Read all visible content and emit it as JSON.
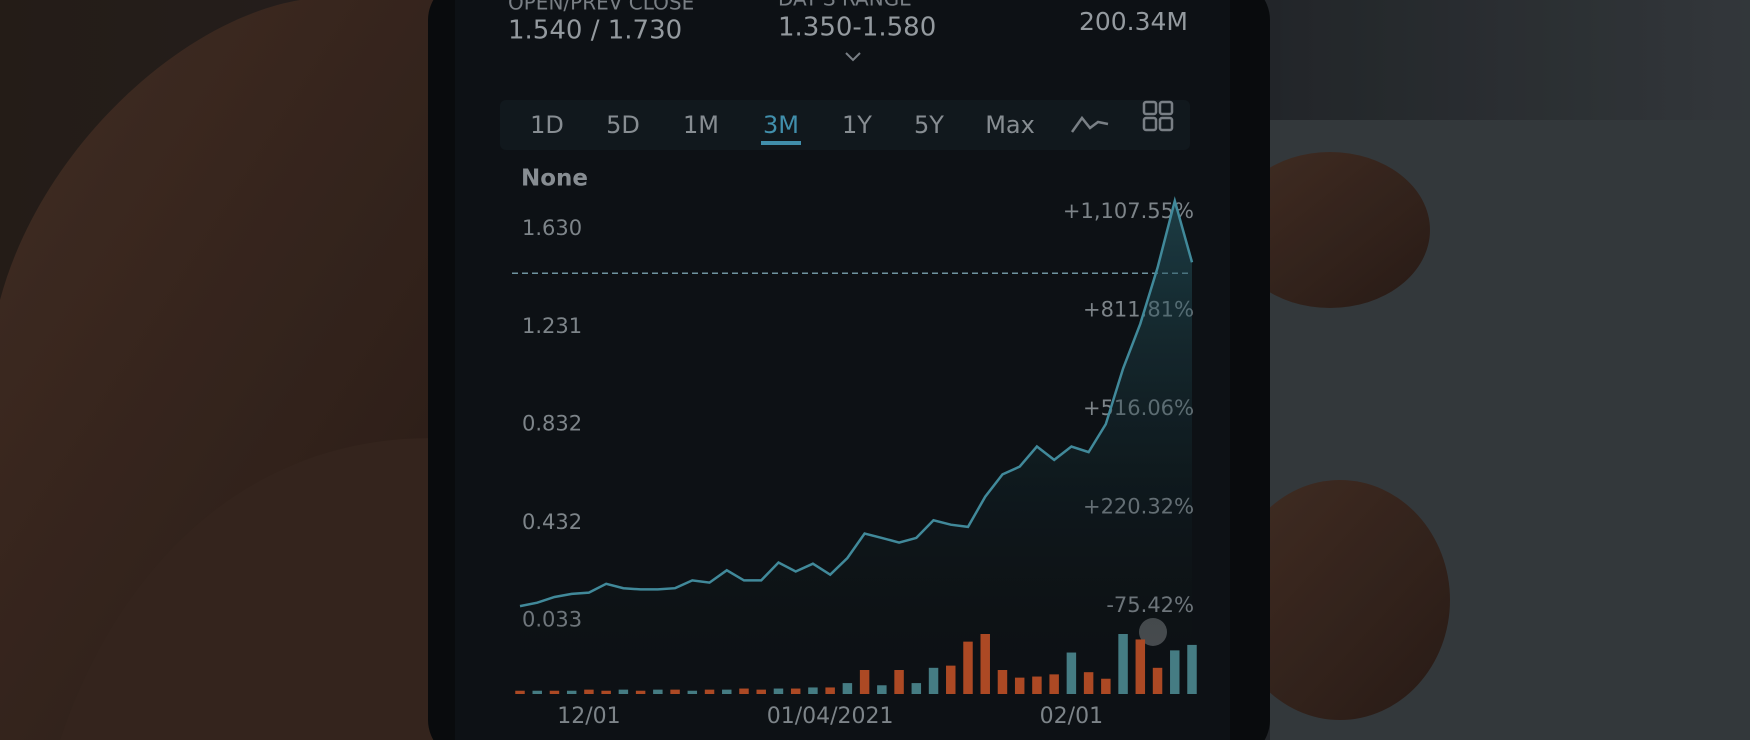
{
  "header": {
    "open_label": "OPEN/PREV CLOSE",
    "open_value": "1.540 / 1.730",
    "range_label": "DAY'S RANGE",
    "range_value": "1.350-1.580",
    "volume_value": "200.34M"
  },
  "tabs": [
    "1D",
    "5D",
    "1M",
    "3M",
    "1Y",
    "5Y",
    "Max"
  ],
  "active_tab": "3M",
  "indicator": "None",
  "chart_data": {
    "type": "line",
    "categories": [
      null,
      null,
      null,
      null,
      "12/01",
      null,
      null,
      null,
      null,
      null,
      null,
      null,
      null,
      null,
      null,
      null,
      null,
      null,
      "01/04/2021",
      null,
      null,
      null,
      null,
      null,
      null,
      null,
      null,
      null,
      null,
      null,
      null,
      null,
      "02/01",
      null,
      null,
      null,
      null,
      null,
      null,
      null
    ],
    "series": [
      {
        "color": "#4a9db0",
        "values": [
          0.133,
          0.147,
          0.17,
          0.183,
          0.188,
          0.224,
          0.206,
          0.201,
          0.201,
          0.206,
          0.238,
          0.229,
          0.279,
          0.238,
          0.238,
          0.311,
          0.274,
          0.306,
          0.261,
          0.329,
          0.429,
          0.411,
          0.392,
          0.411,
          0.483,
          0.465,
          0.456,
          0.579,
          0.67,
          0.702,
          0.784,
          0.729,
          0.784,
          0.761,
          0.875,
          1.102,
          1.284,
          1.512,
          1.785,
          1.535
        ]
      }
    ],
    "volume": [
      3,
      3,
      3,
      3,
      4,
      3,
      4,
      3,
      4,
      4,
      3,
      4,
      4,
      5,
      4,
      5,
      5,
      6,
      6,
      10,
      22,
      8,
      22,
      10,
      24,
      26,
      48,
      55,
      22,
      15,
      16,
      18,
      38,
      20,
      14,
      55,
      50,
      24,
      40,
      45
    ],
    "volume_colors": [
      "#c4542a",
      "#4f8e96",
      "#c4542a",
      "#4f8e96",
      "#c4542a",
      "#c4542a",
      "#4f8e96",
      "#c4542a",
      "#4f8e96",
      "#c4542a",
      "#4f8e96",
      "#c4542a",
      "#4f8e96",
      "#c4542a",
      "#c4542a",
      "#4f8e96",
      "#c4542a",
      "#4f8e96",
      "#c4542a",
      "#4f8e96",
      "#c4542a",
      "#4f8e96",
      "#c4542a",
      "#4f8e96",
      "#4f8e96",
      "#c4542a",
      "#c4542a",
      "#c4542a",
      "#c4542a",
      "#c4542a",
      "#c4542a",
      "#c4542a",
      "#4f8e96",
      "#c4542a",
      "#c4542a",
      "#4f8e96",
      "#c4542a",
      "#c4542a",
      "#4f8e96",
      "#4f8e96"
    ],
    "reference_line": 1.49,
    "ylim": [
      -0.05,
      1.85
    ],
    "yticks": [
      {
        "value": 0.033,
        "label": "0.033"
      },
      {
        "value": 0.432,
        "label": "0.432"
      },
      {
        "value": 0.832,
        "label": "0.832"
      },
      {
        "value": 1.231,
        "label": "1.231"
      },
      {
        "value": 1.63,
        "label": "1.630"
      }
    ],
    "y2lim": [
      -210,
      1189
    ],
    "y2ticks": [
      {
        "value": -75.42,
        "label": "-75.42%"
      },
      {
        "value": 220.32,
        "label": "+220.32%"
      },
      {
        "value": 516.06,
        "label": "+516.06%"
      },
      {
        "value": 811.81,
        "label": "+811.81%"
      },
      {
        "value": 1107.55,
        "label": "+1,107.55%"
      }
    ],
    "grid": false
  }
}
